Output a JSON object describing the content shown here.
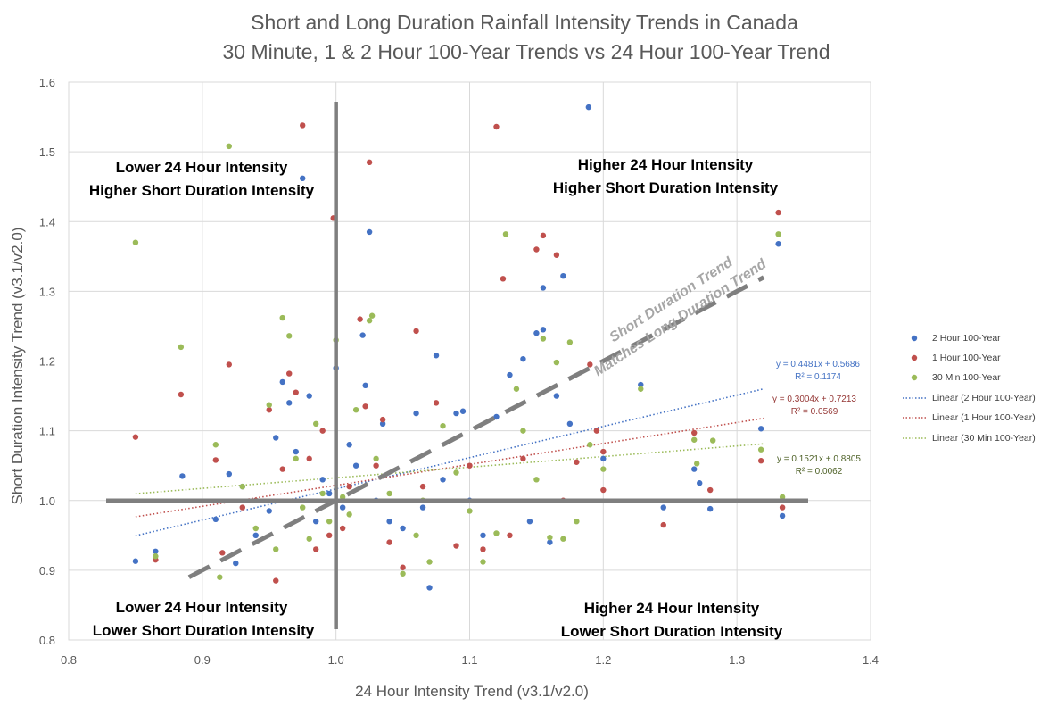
{
  "chart_data": {
    "type": "scatter",
    "title": "Short and Long Duration Rainfall Intensity Trends in Canada",
    "subtitle": "30 Minute, 1 & 2 Hour 100-Year Trends vs 24 Hour 100-Year Trend",
    "xlabel": "24 Hour Intensity Trend (v3.1/v2.0)",
    "ylabel": "Short Duration  Intensity Trend (v3.1/v2.0)",
    "xlim": [
      0.8,
      1.4
    ],
    "ylim": [
      0.8,
      1.6
    ],
    "xticks": [
      "0.8",
      "0.9",
      "1.0",
      "1.1",
      "1.2",
      "1.3",
      "1.4"
    ],
    "yticks": [
      "0.8",
      "0.9",
      "1.0",
      "1.1",
      "1.2",
      "1.3",
      "1.4",
      "1.5",
      "1.6"
    ],
    "grid": true,
    "legend_position": "right",
    "quadrant_labels": {
      "top_left": [
        "Lower 24 Hour Intensity",
        "Higher Short Duration Intensity"
      ],
      "top_right": [
        "Higher 24 Hour Intensity",
        "Higher Short Duration Intensity"
      ],
      "bottom_left": [
        "Lower 24 Hour Intensity",
        "Lower Short Duration Intensity"
      ],
      "bottom_right": [
        "Higher 24 Hour Intensity",
        "Lower Short Duration Intensity"
      ]
    },
    "diagonal_label": [
      "Short Duration Trend",
      "Matches Long Duration Trend"
    ],
    "reference_lines": {
      "vertical_x": 1.0,
      "horizontal_y": 1.0,
      "diagonal": [
        [
          0.89,
          0.89
        ],
        [
          1.32,
          1.32
        ]
      ]
    },
    "series": [
      {
        "name": "2 Hour 100-Year",
        "color": "#4472c4",
        "trend_name": "Linear (2 Hour 100-Year)",
        "slope": 0.4481,
        "intercept": 0.5686,
        "equation": "y = 0.4481x + 0.5686",
        "r2": "R² = 0.1174",
        "points": [
          [
            0.85,
            0.913
          ],
          [
            0.865,
            0.927
          ],
          [
            0.885,
            1.035
          ],
          [
            0.91,
            0.973
          ],
          [
            0.92,
            1.038
          ],
          [
            0.925,
            0.91
          ],
          [
            0.93,
            1.02
          ],
          [
            0.94,
            0.95
          ],
          [
            0.95,
            0.985
          ],
          [
            0.955,
            1.09
          ],
          [
            0.96,
            1.17
          ],
          [
            0.965,
            1.14
          ],
          [
            0.97,
            1.07
          ],
          [
            0.975,
            1.462
          ],
          [
            0.98,
            1.15
          ],
          [
            0.985,
            0.97
          ],
          [
            0.99,
            1.03
          ],
          [
            0.995,
            1.01
          ],
          [
            1.0,
            1.19
          ],
          [
            1.005,
            0.99
          ],
          [
            1.01,
            1.08
          ],
          [
            1.015,
            1.05
          ],
          [
            1.02,
            1.237
          ],
          [
            1.022,
            1.165
          ],
          [
            1.025,
            1.385
          ],
          [
            1.03,
            1.0
          ],
          [
            1.035,
            1.11
          ],
          [
            1.04,
            0.97
          ],
          [
            1.05,
            0.96
          ],
          [
            1.06,
            1.125
          ],
          [
            1.065,
            0.99
          ],
          [
            1.07,
            0.875
          ],
          [
            1.075,
            1.208
          ],
          [
            1.08,
            1.03
          ],
          [
            1.09,
            1.125
          ],
          [
            1.095,
            1.128
          ],
          [
            1.1,
            1.0
          ],
          [
            1.11,
            0.95
          ],
          [
            1.12,
            1.12
          ],
          [
            1.13,
            1.18
          ],
          [
            1.14,
            1.203
          ],
          [
            1.145,
            0.97
          ],
          [
            1.15,
            1.24
          ],
          [
            1.155,
            1.245
          ],
          [
            1.155,
            1.305
          ],
          [
            1.16,
            0.94
          ],
          [
            1.165,
            1.15
          ],
          [
            1.17,
            1.322
          ],
          [
            1.175,
            1.11
          ],
          [
            1.189,
            1.564
          ],
          [
            1.2,
            1.06
          ],
          [
            1.228,
            1.166
          ],
          [
            1.245,
            0.99
          ],
          [
            1.268,
            1.045
          ],
          [
            1.272,
            1.025
          ],
          [
            1.28,
            0.988
          ],
          [
            1.318,
            1.103
          ],
          [
            1.331,
            1.368
          ],
          [
            1.334,
            0.978
          ]
        ]
      },
      {
        "name": "1 Hour 100-Year",
        "color": "#c0504d",
        "trend_name": "Linear (1 Hour 100-Year)",
        "slope": 0.3004,
        "intercept": 0.7213,
        "equation": "y = 0.3004x + 0.7213",
        "r2": "R² = 0.0569",
        "points": [
          [
            0.85,
            1.091
          ],
          [
            0.865,
            0.915
          ],
          [
            0.884,
            1.152
          ],
          [
            0.91,
            1.058
          ],
          [
            0.915,
            0.925
          ],
          [
            0.92,
            1.195
          ],
          [
            0.93,
            0.99
          ],
          [
            0.94,
            1.0
          ],
          [
            0.95,
            1.13
          ],
          [
            0.955,
            0.885
          ],
          [
            0.96,
            1.045
          ],
          [
            0.965,
            1.182
          ],
          [
            0.97,
            1.155
          ],
          [
            0.975,
            1.538
          ],
          [
            0.98,
            1.06
          ],
          [
            0.985,
            0.93
          ],
          [
            0.99,
            1.1
          ],
          [
            0.995,
            0.95
          ],
          [
            0.998,
            1.405
          ],
          [
            1.0,
            1.0
          ],
          [
            1.005,
            0.96
          ],
          [
            1.01,
            1.02
          ],
          [
            1.018,
            1.26
          ],
          [
            1.022,
            1.135
          ],
          [
            1.025,
            1.485
          ],
          [
            1.03,
            1.05
          ],
          [
            1.035,
            1.116
          ],
          [
            1.04,
            0.94
          ],
          [
            1.05,
            0.904
          ],
          [
            1.06,
            1.243
          ],
          [
            1.065,
            1.02
          ],
          [
            1.075,
            1.14
          ],
          [
            1.09,
            0.935
          ],
          [
            1.1,
            1.05
          ],
          [
            1.11,
            0.93
          ],
          [
            1.12,
            1.536
          ],
          [
            1.125,
            1.318
          ],
          [
            1.13,
            0.95
          ],
          [
            1.14,
            1.06
          ],
          [
            1.15,
            1.36
          ],
          [
            1.155,
            1.38
          ],
          [
            1.165,
            1.352
          ],
          [
            1.17,
            1.0
          ],
          [
            1.18,
            1.055
          ],
          [
            1.19,
            1.195
          ],
          [
            1.195,
            1.1
          ],
          [
            1.2,
            1.07
          ],
          [
            1.2,
            1.015
          ],
          [
            1.245,
            0.965
          ],
          [
            1.268,
            1.097
          ],
          [
            1.28,
            1.015
          ],
          [
            1.318,
            1.057
          ],
          [
            1.331,
            1.413
          ],
          [
            1.334,
            0.99
          ]
        ]
      },
      {
        "name": "30 Min 100-Year",
        "color": "#9bbb59",
        "trend_name": "Linear (30 Min 100-Year)",
        "slope": 0.1521,
        "intercept": 0.8805,
        "equation": "y = 0.1521x + 0.8805",
        "r2": "R² = 0.0062",
        "points": [
          [
            0.85,
            1.37
          ],
          [
            0.865,
            0.92
          ],
          [
            0.884,
            1.22
          ],
          [
            0.91,
            1.08
          ],
          [
            0.913,
            0.89
          ],
          [
            0.92,
            1.508
          ],
          [
            0.93,
            1.02
          ],
          [
            0.94,
            0.96
          ],
          [
            0.95,
            1.137
          ],
          [
            0.955,
            0.93
          ],
          [
            0.96,
            1.262
          ],
          [
            0.965,
            1.236
          ],
          [
            0.97,
            1.06
          ],
          [
            0.975,
            0.99
          ],
          [
            0.98,
            0.945
          ],
          [
            0.985,
            1.11
          ],
          [
            0.99,
            1.01
          ],
          [
            0.995,
            0.97
          ],
          [
            1.0,
            1.23
          ],
          [
            1.005,
            1.005
          ],
          [
            1.01,
            0.98
          ],
          [
            1.015,
            1.13
          ],
          [
            1.025,
            1.258
          ],
          [
            1.027,
            1.265
          ],
          [
            1.03,
            1.06
          ],
          [
            1.04,
            1.01
          ],
          [
            1.05,
            0.895
          ],
          [
            1.06,
            0.95
          ],
          [
            1.065,
            1.0
          ],
          [
            1.07,
            0.912
          ],
          [
            1.08,
            1.107
          ],
          [
            1.09,
            1.04
          ],
          [
            1.1,
            0.985
          ],
          [
            1.11,
            0.912
          ],
          [
            1.12,
            0.953
          ],
          [
            1.127,
            1.382
          ],
          [
            1.135,
            1.16
          ],
          [
            1.14,
            1.1
          ],
          [
            1.15,
            1.03
          ],
          [
            1.155,
            1.232
          ],
          [
            1.16,
            0.947
          ],
          [
            1.165,
            1.198
          ],
          [
            1.17,
            0.945
          ],
          [
            1.175,
            1.227
          ],
          [
            1.18,
            0.97
          ],
          [
            1.19,
            1.08
          ],
          [
            1.2,
            1.045
          ],
          [
            1.228,
            1.16
          ],
          [
            1.268,
            1.087
          ],
          [
            1.27,
            1.053
          ],
          [
            1.282,
            1.086
          ],
          [
            1.318,
            1.073
          ],
          [
            1.331,
            1.382
          ],
          [
            1.334,
            1.005
          ]
        ]
      }
    ]
  }
}
